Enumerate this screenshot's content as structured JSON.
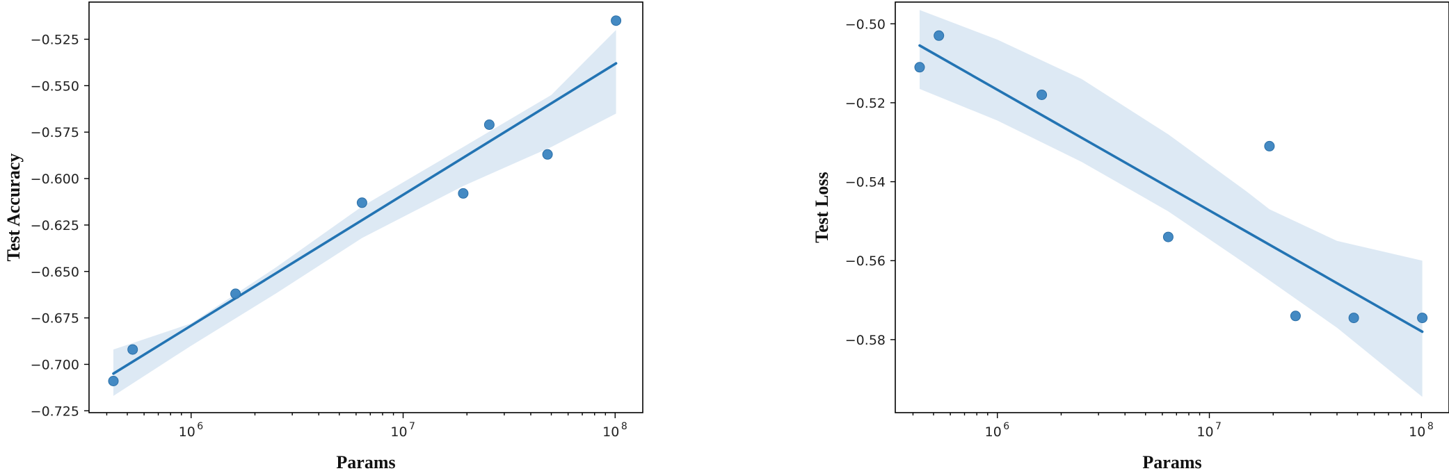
{
  "chart_data": [
    {
      "type": "scatter",
      "xlabel": "Params",
      "ylabel": "Test Accuracy",
      "xscale": "log",
      "xlim": [
        330000,
        135000000
      ],
      "ylim": [
        -0.726,
        -0.505
      ],
      "xticks": [
        1000000,
        10000000,
        100000000
      ],
      "xtick_labels": [
        [
          "10",
          "6"
        ],
        [
          "10",
          "7"
        ],
        [
          "10",
          "8"
        ]
      ],
      "yticks": [
        -0.725,
        -0.7,
        -0.675,
        -0.65,
        -0.625,
        -0.6,
        -0.575,
        -0.55,
        -0.525
      ],
      "ytick_labels": [
        "−0.725",
        "−0.700",
        "−0.675",
        "−0.650",
        "−0.625",
        "−0.600",
        "−0.575",
        "−0.550",
        "−0.525"
      ],
      "points": {
        "x": [
          430000,
          530000,
          1620000,
          6400000,
          19200000,
          25500000,
          48000000,
          101000000
        ],
        "y": [
          -0.709,
          -0.692,
          -0.662,
          -0.613,
          -0.608,
          -0.571,
          -0.587,
          -0.515
        ]
      },
      "fit": {
        "x": [
          430000,
          101000000
        ],
        "y": [
          -0.705,
          -0.538
        ]
      },
      "ci_band": {
        "x": [
          430000,
          1000000,
          2500000,
          6400000,
          19200000,
          50000000,
          101000000
        ],
        "upper": [
          -0.692,
          -0.678,
          -0.648,
          -0.615,
          -0.583,
          -0.555,
          -0.52
        ],
        "lower": [
          -0.717,
          -0.69,
          -0.662,
          -0.632,
          -0.604,
          -0.583,
          -0.565
        ]
      },
      "grid": false,
      "legend": "none",
      "colors": {
        "line": "#2374b3",
        "points": "#3a84c0",
        "band": "#cfe0f0"
      }
    },
    {
      "type": "scatter",
      "xlabel": "Params",
      "ylabel": "Test Loss",
      "xscale": "log",
      "xlim": [
        330000,
        135000000
      ],
      "ylim": [
        -0.5985,
        -0.4945
      ],
      "xticks": [
        1000000,
        10000000,
        100000000
      ],
      "xtick_labels": [
        [
          "10",
          "6"
        ],
        [
          "10",
          "7"
        ],
        [
          "10",
          "8"
        ]
      ],
      "yticks": [
        -0.58,
        -0.56,
        -0.54,
        -0.52,
        -0.5
      ],
      "ytick_labels": [
        "−0.58",
        "−0.56",
        "−0.54",
        "−0.52",
        "−0.50"
      ],
      "points": {
        "x": [
          430000,
          530000,
          1620000,
          6400000,
          19200000,
          25500000,
          48000000,
          101000000
        ],
        "y": [
          -0.511,
          -0.503,
          -0.518,
          -0.554,
          -0.531,
          -0.574,
          -0.5745,
          -0.5745
        ]
      },
      "fit": {
        "x": [
          430000,
          101000000
        ],
        "y": [
          -0.5055,
          -0.578
        ]
      },
      "ci_band": {
        "x": [
          430000,
          1000000,
          2500000,
          6400000,
          15000000,
          19200000,
          40000000,
          101000000
        ],
        "upper": [
          -0.4965,
          -0.504,
          -0.514,
          -0.528,
          -0.5425,
          -0.547,
          -0.555,
          -0.56
        ],
        "lower": [
          -0.5165,
          -0.5245,
          -0.535,
          -0.5475,
          -0.561,
          -0.565,
          -0.577,
          -0.5945
        ]
      },
      "grid": false,
      "legend": "none",
      "colors": {
        "line": "#2374b3",
        "points": "#3a84c0",
        "band": "#cfe0f0"
      }
    }
  ]
}
